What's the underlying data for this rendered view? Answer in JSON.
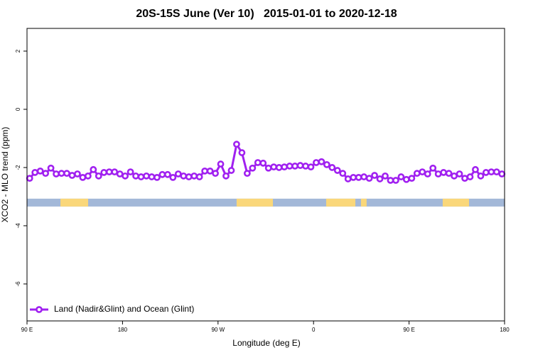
{
  "chart_data": {
    "type": "line",
    "title": "20S-15S June (Ver 10)   2015-01-01 to 2020-12-18",
    "xlabel": "Longitude (deg E)",
    "ylabel": "XCO2 - MLO trend (ppm)",
    "xlim": [
      90,
      540
    ],
    "ylim": [
      -7.27,
      2.78
    ],
    "xticks": [
      {
        "value": 90,
        "label": "90 E"
      },
      180,
      {
        "value": 270,
        "label": "90 W"
      },
      {
        "value": 360,
        "label": "0"
      },
      {
        "value": 450,
        "label": "90 E"
      },
      {
        "value": 540,
        "label": "180"
      }
    ],
    "yticks": [
      -6,
      -4,
      -2,
      0,
      2
    ],
    "grid": false,
    "legend": "bottom-left",
    "x": [
      92.5,
      97.5,
      102.5,
      107.5,
      112.5,
      117.5,
      122.5,
      127.5,
      132.5,
      137.5,
      142.5,
      147.5,
      152.5,
      157.5,
      162.5,
      167.5,
      172.5,
      177.5,
      182.5,
      187.5,
      192.5,
      197.5,
      202.5,
      207.5,
      212.5,
      217.5,
      222.5,
      227.5,
      232.5,
      237.5,
      242.5,
      247.5,
      252.5,
      257.5,
      262.5,
      267.5,
      272.5,
      277.5,
      282.5,
      287.5,
      292.5,
      297.5,
      302.5,
      307.5,
      312.5,
      317.5,
      322.5,
      327.5,
      332.5,
      337.5,
      342.5,
      347.5,
      352.5,
      357.5,
      362.5,
      367.5,
      372.5,
      377.5,
      382.5,
      387.5,
      392.5,
      397.5,
      402.5,
      407.5,
      412.5,
      417.5,
      422.5,
      427.5,
      432.5,
      437.5,
      442.5,
      447.5,
      452.5,
      457.5,
      462.5,
      467.5,
      472.5,
      477.5,
      482.5,
      487.5,
      492.5,
      497.5,
      502.5,
      507.5,
      512.5,
      517.5,
      522.5,
      527.5,
      532.5,
      537.5
    ],
    "series": [
      {
        "name": "Land (Nadir&Glint) and Ocean (Glint)",
        "color": "#a020f0",
        "values": [
          -2.37,
          -2.17,
          -2.12,
          -2.2,
          -2.02,
          -2.22,
          -2.2,
          -2.2,
          -2.27,
          -2.22,
          -2.34,
          -2.29,
          -2.07,
          -2.29,
          -2.17,
          -2.15,
          -2.15,
          -2.22,
          -2.29,
          -2.15,
          -2.29,
          -2.32,
          -2.29,
          -2.32,
          -2.34,
          -2.24,
          -2.24,
          -2.34,
          -2.22,
          -2.29,
          -2.32,
          -2.29,
          -2.32,
          -2.12,
          -2.12,
          -2.2,
          -1.88,
          -2.29,
          -2.1,
          -1.2,
          -1.49,
          -2.2,
          -2.02,
          -1.83,
          -1.85,
          -2.02,
          -1.98,
          -2.0,
          -1.98,
          -1.95,
          -1.95,
          -1.93,
          -1.95,
          -1.98,
          -1.83,
          -1.8,
          -1.9,
          -2.0,
          -2.1,
          -2.2,
          -2.39,
          -2.34,
          -2.34,
          -2.32,
          -2.37,
          -2.27,
          -2.39,
          -2.29,
          -2.44,
          -2.44,
          -2.32,
          -2.41,
          -2.37,
          -2.2,
          -2.15,
          -2.22,
          -2.02,
          -2.22,
          -2.17,
          -2.2,
          -2.29,
          -2.22,
          -2.37,
          -2.32,
          -2.07,
          -2.29,
          -2.17,
          -2.15,
          -2.15,
          -2.22
        ]
      }
    ],
    "surface_band": {
      "y": [
        -3.34,
        -3.07
      ],
      "ocean_color": "#a3b8d8",
      "land_color": "#fad77a",
      "land_segments": [
        [
          121.5,
          147.6
        ],
        [
          287.5,
          321.7
        ],
        [
          371.9,
          399.4
        ],
        [
          404.7,
          410
        ],
        [
          481.7,
          506.5
        ]
      ]
    }
  }
}
